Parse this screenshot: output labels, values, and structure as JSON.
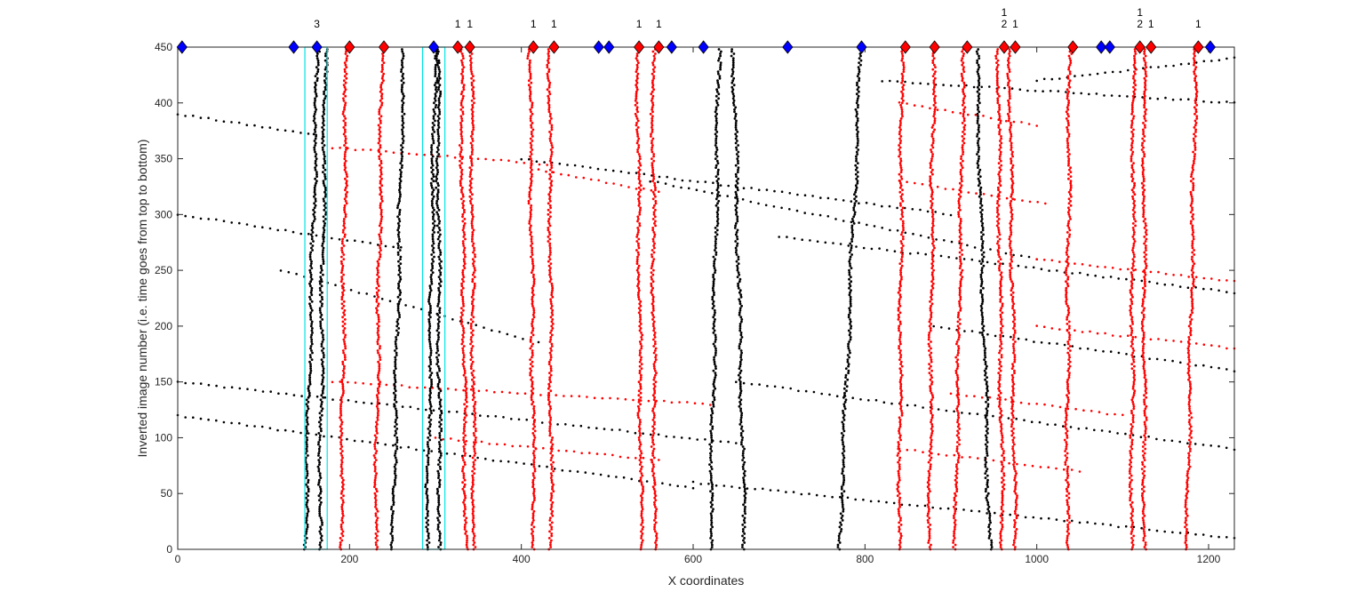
{
  "chart_data": {
    "type": "scatter",
    "title": "",
    "xlabel": "X coordinates",
    "ylabel": "Inverted image number (i.e. time goes from top to bottom)",
    "xlim": [
      0,
      1230
    ],
    "ylim": [
      0,
      450
    ],
    "xticks": [
      0,
      200,
      400,
      600,
      800,
      1000,
      1200
    ],
    "yticks": [
      0,
      50,
      100,
      150,
      200,
      250,
      300,
      350,
      400,
      450
    ],
    "grid": false,
    "legend": "none",
    "colors": {
      "black_tracks": "#000000",
      "red_tracks": "#ff0000",
      "blue_marker": "#0000ff",
      "red_marker": "#ff0000",
      "highlight_box": "#00e5e5"
    },
    "vertical_tracks_black": [
      {
        "x_bottom": 148,
        "x_top": 163
      },
      {
        "x_bottom": 165,
        "x_top": 172
      },
      {
        "x_bottom": 290,
        "x_top": 300
      },
      {
        "x_bottom": 305,
        "x_top": 303
      },
      {
        "x_bottom": 250,
        "x_top": 263
      },
      {
        "x_bottom": 660,
        "x_top": 647
      },
      {
        "x_bottom": 770,
        "x_top": 795
      },
      {
        "x_bottom": 620,
        "x_top": 630
      },
      {
        "x_bottom": 945,
        "x_top": 930
      }
    ],
    "vertical_tracks_red": [
      {
        "x_bottom": 190,
        "x_top": 196
      },
      {
        "x_bottom": 230,
        "x_top": 238
      },
      {
        "x_bottom": 335,
        "x_top": 330
      },
      {
        "x_bottom": 345,
        "x_top": 342
      },
      {
        "x_bottom": 415,
        "x_top": 410
      },
      {
        "x_bottom": 435,
        "x_top": 433
      },
      {
        "x_bottom": 540,
        "x_top": 535
      },
      {
        "x_bottom": 555,
        "x_top": 553
      },
      {
        "x_bottom": 840,
        "x_top": 843
      },
      {
        "x_bottom": 875,
        "x_top": 880
      },
      {
        "x_bottom": 905,
        "x_top": 915
      },
      {
        "x_bottom": 960,
        "x_top": 955
      },
      {
        "x_bottom": 975,
        "x_top": 968
      },
      {
        "x_bottom": 1035,
        "x_top": 1038
      },
      {
        "x_bottom": 1110,
        "x_top": 1113
      },
      {
        "x_bottom": 1125,
        "x_top": 1125
      },
      {
        "x_bottom": 1175,
        "x_top": 1185
      }
    ],
    "diagonal_tracks_black": [
      {
        "x1": 0,
        "y1": 150,
        "x2": 650,
        "y2": 95
      },
      {
        "x1": 0,
        "y1": 120,
        "x2": 600,
        "y2": 55
      },
      {
        "x1": 0,
        "y1": 300,
        "x2": 260,
        "y2": 270
      },
      {
        "x1": 0,
        "y1": 390,
        "x2": 170,
        "y2": 370
      },
      {
        "x1": 400,
        "y1": 350,
        "x2": 900,
        "y2": 300
      },
      {
        "x1": 550,
        "y1": 330,
        "x2": 1000,
        "y2": 260
      },
      {
        "x1": 700,
        "y1": 280,
        "x2": 1230,
        "y2": 230
      },
      {
        "x1": 820,
        "y1": 420,
        "x2": 1230,
        "y2": 400
      },
      {
        "x1": 1000,
        "y1": 420,
        "x2": 1230,
        "y2": 440
      },
      {
        "x1": 650,
        "y1": 150,
        "x2": 1230,
        "y2": 90
      },
      {
        "x1": 600,
        "y1": 60,
        "x2": 1230,
        "y2": 10
      },
      {
        "x1": 880,
        "y1": 200,
        "x2": 1230,
        "y2": 160
      },
      {
        "x1": 120,
        "y1": 250,
        "x2": 420,
        "y2": 185
      }
    ],
    "diagonal_tracks_red": [
      {
        "x1": 180,
        "y1": 360,
        "x2": 430,
        "y2": 345
      },
      {
        "x1": 420,
        "y1": 340,
        "x2": 560,
        "y2": 320
      },
      {
        "x1": 180,
        "y1": 150,
        "x2": 620,
        "y2": 130
      },
      {
        "x1": 300,
        "y1": 100,
        "x2": 560,
        "y2": 80
      },
      {
        "x1": 840,
        "y1": 330,
        "x2": 1010,
        "y2": 310
      },
      {
        "x1": 840,
        "y1": 400,
        "x2": 1000,
        "y2": 380
      },
      {
        "x1": 1000,
        "y1": 260,
        "x2": 1230,
        "y2": 240
      },
      {
        "x1": 900,
        "y1": 140,
        "x2": 1100,
        "y2": 120
      },
      {
        "x1": 840,
        "y1": 90,
        "x2": 1050,
        "y2": 70
      },
      {
        "x1": 1000,
        "y1": 200,
        "x2": 1230,
        "y2": 180
      }
    ],
    "markers_y": 450,
    "markers": [
      {
        "x": 5,
        "color": "blue",
        "label": ""
      },
      {
        "x": 135,
        "color": "blue",
        "label": ""
      },
      {
        "x": 162,
        "color": "blue",
        "label": "3"
      },
      {
        "x": 200,
        "color": "red",
        "label": ""
      },
      {
        "x": 240,
        "color": "red",
        "label": ""
      },
      {
        "x": 298,
        "color": "blue",
        "label": ""
      },
      {
        "x": 326,
        "color": "red",
        "label": "1"
      },
      {
        "x": 340,
        "color": "red",
        "label": "1"
      },
      {
        "x": 414,
        "color": "red",
        "label": "1"
      },
      {
        "x": 438,
        "color": "red",
        "label": "1"
      },
      {
        "x": 490,
        "color": "blue",
        "label": ""
      },
      {
        "x": 502,
        "color": "blue",
        "label": ""
      },
      {
        "x": 537,
        "color": "red",
        "label": "1"
      },
      {
        "x": 560,
        "color": "red",
        "label": "1"
      },
      {
        "x": 575,
        "color": "blue",
        "label": ""
      },
      {
        "x": 612,
        "color": "blue",
        "label": ""
      },
      {
        "x": 710,
        "color": "blue",
        "label": ""
      },
      {
        "x": 796,
        "color": "blue",
        "label": ""
      },
      {
        "x": 847,
        "color": "red",
        "label": ""
      },
      {
        "x": 881,
        "color": "red",
        "label": ""
      },
      {
        "x": 919,
        "color": "red",
        "label": ""
      },
      {
        "x": 962,
        "color": "red",
        "label": "1\n2"
      },
      {
        "x": 975,
        "color": "red",
        "label": "1"
      },
      {
        "x": 1042,
        "color": "red",
        "label": ""
      },
      {
        "x": 1075,
        "color": "blue",
        "label": ""
      },
      {
        "x": 1085,
        "color": "blue",
        "label": ""
      },
      {
        "x": 1120,
        "color": "red",
        "label": "1\n2"
      },
      {
        "x": 1133,
        "color": "red",
        "label": "1"
      },
      {
        "x": 1188,
        "color": "red",
        "label": "1"
      },
      {
        "x": 1202,
        "color": "blue",
        "label": ""
      }
    ],
    "highlight_boxes": [
      {
        "x0": 148,
        "x1": 174,
        "y0": 0,
        "y1": 450
      },
      {
        "x0": 285,
        "x1": 311,
        "y0": 0,
        "y1": 450
      }
    ]
  }
}
